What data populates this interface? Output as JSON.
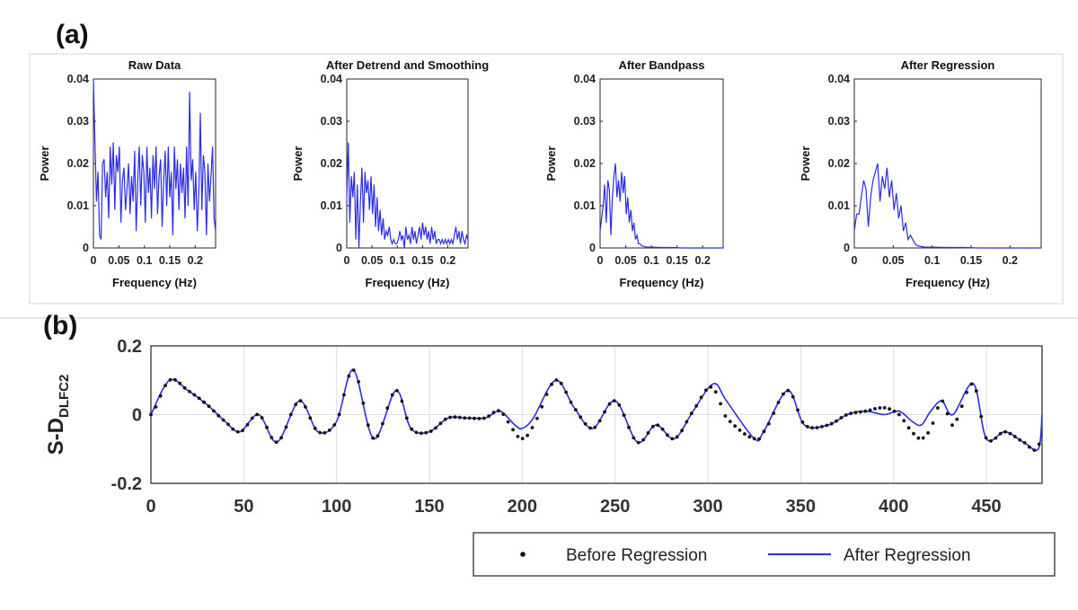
{
  "panel_a_label": "(a)",
  "panel_b_label": "(b)",
  "chart_data": [
    {
      "type": "line",
      "title": "Raw Data",
      "xlabel": "Frequency (Hz)",
      "ylabel": "Power",
      "xlim": [
        0,
        0.24
      ],
      "ylim": [
        0,
        0.04
      ],
      "xticks": [
        0,
        0.05,
        0.1,
        0.15,
        0.2
      ],
      "xtick_labels": [
        "0",
        "0.05",
        "0.1",
        "0.15",
        "0.2"
      ],
      "yticks": [
        0,
        0.01,
        0.02,
        0.03,
        0.04
      ],
      "ytick_labels": [
        "0",
        "0.01",
        "0.02",
        "0.03",
        "0.04"
      ],
      "series": [
        {
          "color": "#2b2bea",
          "x": [
            0,
            0.003,
            0.006,
            0.009,
            0.012,
            0.015,
            0.018,
            0.021,
            0.024,
            0.027,
            0.03,
            0.033,
            0.036,
            0.039,
            0.042,
            0.045,
            0.048,
            0.051,
            0.054,
            0.057,
            0.06,
            0.063,
            0.066,
            0.069,
            0.072,
            0.075,
            0.078,
            0.081,
            0.084,
            0.087,
            0.09,
            0.093,
            0.096,
            0.099,
            0.102,
            0.105,
            0.108,
            0.111,
            0.114,
            0.117,
            0.12,
            0.123,
            0.126,
            0.129,
            0.132,
            0.135,
            0.138,
            0.141,
            0.144,
            0.147,
            0.15,
            0.153,
            0.156,
            0.159,
            0.162,
            0.165,
            0.168,
            0.171,
            0.174,
            0.177,
            0.18,
            0.183,
            0.186,
            0.189,
            0.192,
            0.195,
            0.198,
            0.201,
            0.204,
            0.207,
            0.21,
            0.213,
            0.216,
            0.219,
            0.222,
            0.225,
            0.228,
            0.231,
            0.234,
            0.237,
            0.24
          ],
          "y": [
            0.04,
            0.025,
            0.011,
            0.018,
            0.003,
            0.002,
            0.02,
            0.021,
            0.012,
            0.018,
            0.007,
            0.024,
            0.015,
            0.025,
            0.009,
            0.022,
            0.018,
            0.024,
            0.006,
            0.016,
            0.019,
            0.009,
            0.014,
            0.02,
            0.008,
            0.017,
            0.011,
            0.023,
            0.004,
            0.016,
            0.024,
            0.01,
            0.022,
            0.018,
            0.006,
            0.024,
            0.013,
            0.019,
            0.007,
            0.022,
            0.014,
            0.024,
            0.008,
            0.017,
            0.021,
            0.005,
            0.016,
            0.023,
            0.01,
            0.024,
            0.012,
            0.018,
            0.003,
            0.024,
            0.014,
            0.021,
            0.009,
            0.02,
            0.013,
            0.019,
            0.007,
            0.024,
            0.01,
            0.037,
            0.016,
            0.021,
            0.009,
            0.018,
            0.004,
            0.013,
            0.032,
            0.009,
            0.022,
            0.018,
            0.003,
            0.02,
            0.011,
            0.017,
            0.024,
            0.007,
            0.004
          ]
        }
      ]
    },
    {
      "type": "line",
      "title": "After Detrend and Smoothing",
      "xlabel": "Frequency (Hz)",
      "ylabel": "Power",
      "xlim": [
        0,
        0.24
      ],
      "ylim": [
        0,
        0.04
      ],
      "xticks": [
        0,
        0.05,
        0.1,
        0.15,
        0.2
      ],
      "xtick_labels": [
        "0",
        "0.05",
        "0.1",
        "0.15",
        "0.2"
      ],
      "yticks": [
        0,
        0.01,
        0.02,
        0.03,
        0.04
      ],
      "ytick_labels": [
        "0",
        "0.01",
        "0.02",
        "0.03",
        "0.04"
      ],
      "series": [
        {
          "color": "#2b2bea",
          "x": [
            0,
            0.003,
            0.006,
            0.009,
            0.012,
            0.015,
            0.018,
            0.021,
            0.024,
            0.027,
            0.03,
            0.033,
            0.036,
            0.039,
            0.042,
            0.045,
            0.048,
            0.051,
            0.054,
            0.057,
            0.06,
            0.063,
            0.066,
            0.069,
            0.072,
            0.075,
            0.078,
            0.081,
            0.084,
            0.087,
            0.09,
            0.093,
            0.096,
            0.099,
            0.102,
            0.105,
            0.108,
            0.111,
            0.114,
            0.117,
            0.12,
            0.123,
            0.126,
            0.129,
            0.132,
            0.135,
            0.138,
            0.141,
            0.144,
            0.147,
            0.15,
            0.153,
            0.156,
            0.159,
            0.162,
            0.165,
            0.168,
            0.171,
            0.174,
            0.177,
            0.18,
            0.183,
            0.186,
            0.189,
            0.192,
            0.195,
            0.198,
            0.201,
            0.204,
            0.207,
            0.21,
            0.213,
            0.216,
            0.219,
            0.222,
            0.225,
            0.228,
            0.231,
            0.234,
            0.237,
            0.24
          ],
          "y": [
            0.012,
            0.025,
            0.006,
            0.017,
            0.012,
            0.018,
            0.002,
            0.015,
            0.0,
            0.011,
            0.019,
            0.006,
            0.018,
            0.013,
            0.016,
            0.009,
            0.017,
            0.008,
            0.015,
            0.005,
            0.012,
            0.004,
            0.009,
            0.003,
            0.007,
            0.002,
            0.004,
            0.003,
            0.005,
            0.002,
            0.001,
            0.002,
            0.001,
            0.001,
            0.002,
            0.004,
            0.002,
            0.003,
            0.0,
            0.005,
            0.002,
            0.003,
            0.001,
            0.005,
            0.002,
            0.004,
            0.001,
            0.003,
            0.005,
            0.002,
            0.006,
            0.003,
            0.005,
            0.002,
            0.004,
            0.001,
            0.005,
            0.002,
            0.004,
            0.001,
            0.002,
            0.002,
            0.001,
            0.002,
            0.001,
            0.002,
            0.001,
            0.002,
            0.001,
            0.002,
            0.001,
            0.003,
            0.005,
            0.002,
            0.004,
            0.001,
            0.004,
            0.002,
            0.001,
            0.003,
            0.002
          ]
        }
      ]
    },
    {
      "type": "line",
      "title": "After Bandpass",
      "xlabel": "Frequency (Hz)",
      "ylabel": "Power",
      "xlim": [
        0,
        0.24
      ],
      "ylim": [
        0,
        0.04
      ],
      "xticks": [
        0,
        0.05,
        0.1,
        0.15,
        0.2
      ],
      "xtick_labels": [
        "0",
        "0.05",
        "0.1",
        "0.15",
        "0.2"
      ],
      "yticks": [
        0,
        0.01,
        0.02,
        0.03,
        0.04
      ],
      "ytick_labels": [
        "0",
        "0.01",
        "0.02",
        "0.03",
        "0.04"
      ],
      "series": [
        {
          "color": "#2b2bea",
          "x": [
            0,
            0.003,
            0.006,
            0.009,
            0.012,
            0.015,
            0.018,
            0.021,
            0.024,
            0.027,
            0.03,
            0.033,
            0.036,
            0.039,
            0.042,
            0.045,
            0.048,
            0.051,
            0.054,
            0.057,
            0.06,
            0.063,
            0.066,
            0.069,
            0.072,
            0.075,
            0.078,
            0.081,
            0.084,
            0.087,
            0.09,
            0.1,
            0.12,
            0.14,
            0.16,
            0.18,
            0.2,
            0.22,
            0.24
          ],
          "y": [
            0.004,
            0.007,
            0.01,
            0.015,
            0.006,
            0.016,
            0.014,
            0.003,
            0.012,
            0.017,
            0.02,
            0.012,
            0.016,
            0.011,
            0.018,
            0.013,
            0.017,
            0.008,
            0.012,
            0.006,
            0.009,
            0.004,
            0.006,
            0.002,
            0.003,
            0.001,
            0.001,
            0.0005,
            0.0004,
            0.0003,
            0.0002,
            0.0002,
            0.0001,
            0.0001,
            0.0,
            0.0,
            0.0,
            0.0,
            0.0
          ]
        }
      ]
    },
    {
      "type": "line",
      "title": "After Regression",
      "xlabel": "Frequency (Hz)",
      "ylabel": "Power",
      "xlim": [
        0,
        0.24
      ],
      "ylim": [
        0,
        0.04
      ],
      "xticks": [
        0,
        0.05,
        0.1,
        0.15,
        0.2
      ],
      "xtick_labels": [
        "0",
        "0.05",
        "0.1",
        "0.15",
        "0.2"
      ],
      "yticks": [
        0,
        0.01,
        0.02,
        0.03,
        0.04
      ],
      "ytick_labels": [
        "0",
        "0.01",
        "0.02",
        "0.03",
        "0.04"
      ],
      "series": [
        {
          "color": "#2b2bea",
          "x": [
            0,
            0.003,
            0.006,
            0.009,
            0.012,
            0.015,
            0.018,
            0.021,
            0.024,
            0.027,
            0.03,
            0.033,
            0.036,
            0.039,
            0.042,
            0.045,
            0.048,
            0.051,
            0.054,
            0.057,
            0.06,
            0.063,
            0.066,
            0.069,
            0.072,
            0.075,
            0.078,
            0.081,
            0.084,
            0.087,
            0.09,
            0.1,
            0.12,
            0.14,
            0.16,
            0.18,
            0.2,
            0.22,
            0.24
          ],
          "y": [
            0.004,
            0.008,
            0.008,
            0.012,
            0.016,
            0.014,
            0.005,
            0.012,
            0.016,
            0.018,
            0.02,
            0.011,
            0.017,
            0.014,
            0.019,
            0.012,
            0.016,
            0.009,
            0.013,
            0.007,
            0.01,
            0.004,
            0.006,
            0.002,
            0.003,
            0.002,
            0.001,
            0.0005,
            0.0004,
            0.0003,
            0.0002,
            0.0002,
            0.0001,
            0.0001,
            0.0,
            0.0,
            0.0,
            0.0,
            0.0
          ]
        }
      ]
    },
    {
      "type": "line",
      "title": "",
      "xlabel": "",
      "ylabel": "S-D",
      "ylabel_subscript": "DLFC2",
      "xlim": [
        0,
        480
      ],
      "ylim": [
        -0.2,
        0.2
      ],
      "xticks": [
        0,
        50,
        100,
        150,
        200,
        250,
        300,
        350,
        400,
        450
      ],
      "xtick_labels": [
        "0",
        "50",
        "100",
        "150",
        "200",
        "250",
        "300",
        "350",
        "400",
        "450"
      ],
      "yticks": [
        -0.2,
        0,
        0.2
      ],
      "ytick_labels": [
        "-0.2",
        "0",
        "0.2"
      ],
      "grid": true,
      "legend": {
        "position": "bottom-right",
        "entries": [
          "Before Regression",
          "After Regression"
        ]
      },
      "series": [
        {
          "name": "Before Regression",
          "style": "dots",
          "color": "#111111",
          "x": [
            0,
            10,
            20,
            30,
            40,
            48,
            58,
            68,
            80,
            90,
            100,
            109,
            120,
            132,
            140,
            150,
            160,
            170,
            180,
            188,
            196,
            200,
            206,
            218,
            228,
            238,
            250,
            262,
            272,
            282,
            292,
            302,
            310,
            325,
            330,
            343,
            352,
            365,
            375,
            385,
            395,
            403,
            410,
            415,
            420,
            426,
            432,
            443,
            450,
            460,
            470,
            478,
            480
          ],
          "y": [
            0.0,
            0.1,
            0.07,
            0.03,
            -0.02,
            -0.05,
            0.0,
            -0.08,
            0.04,
            -0.05,
            -0.02,
            0.13,
            -0.07,
            0.07,
            -0.04,
            -0.05,
            -0.01,
            -0.01,
            -0.01,
            0.01,
            -0.05,
            -0.07,
            -0.03,
            0.1,
            0.02,
            -0.04,
            0.04,
            -0.08,
            -0.03,
            -0.07,
            0.01,
            0.08,
            -0.01,
            -0.07,
            -0.05,
            0.07,
            -0.03,
            -0.03,
            0.0,
            0.01,
            0.02,
            0.0,
            -0.05,
            -0.07,
            -0.04,
            0.04,
            -0.03,
            0.09,
            -0.07,
            -0.05,
            -0.08,
            -0.1,
            0.0
          ]
        },
        {
          "name": "After Regression",
          "style": "line",
          "color": "#2b2bea",
          "x": [
            0,
            10,
            20,
            30,
            40,
            48,
            58,
            68,
            80,
            90,
            100,
            109,
            120,
            132,
            140,
            150,
            160,
            170,
            180,
            188,
            196,
            200,
            206,
            218,
            228,
            238,
            250,
            262,
            272,
            282,
            292,
            303,
            310,
            325,
            330,
            343,
            352,
            365,
            375,
            385,
            395,
            403,
            410,
            415,
            420,
            426,
            432,
            443,
            450,
            460,
            470,
            478,
            480
          ],
          "y": [
            0.0,
            0.1,
            0.07,
            0.03,
            -0.02,
            -0.05,
            0.0,
            -0.08,
            0.04,
            -0.05,
            -0.02,
            0.13,
            -0.07,
            0.07,
            -0.04,
            -0.05,
            -0.01,
            -0.01,
            -0.01,
            0.01,
            -0.03,
            -0.04,
            -0.01,
            0.1,
            0.02,
            -0.04,
            0.04,
            -0.08,
            -0.03,
            -0.07,
            0.01,
            0.09,
            0.04,
            -0.07,
            -0.05,
            0.07,
            -0.03,
            -0.03,
            0.0,
            0.01,
            0.0,
            0.01,
            -0.02,
            -0.03,
            0.01,
            0.04,
            0.0,
            0.09,
            -0.07,
            -0.05,
            -0.08,
            -0.1,
            0.0
          ]
        }
      ]
    }
  ]
}
